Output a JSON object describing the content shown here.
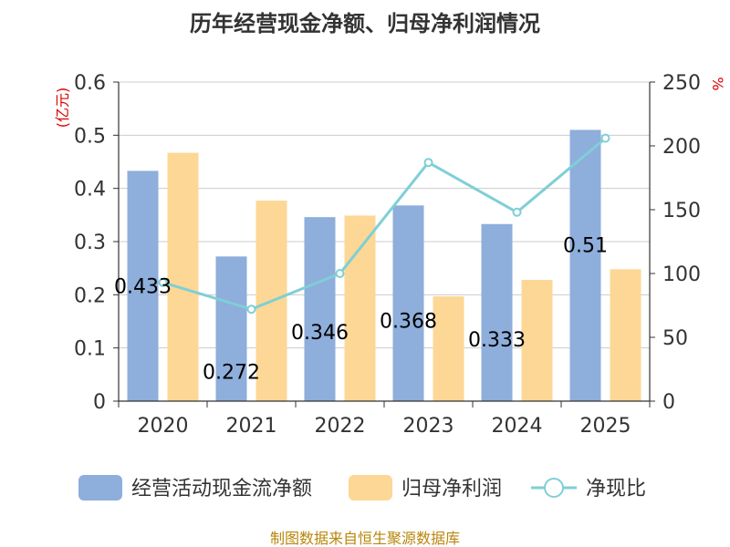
{
  "chart_data": {
    "type": "bar",
    "title": "历年经营现金净额、归母净利润情况",
    "categories": [
      "2020",
      "2021",
      "2022",
      "2023",
      "2024",
      "2025"
    ],
    "series": [
      {
        "name": "经营活动现金流净额",
        "kind": "bar",
        "axis": "left",
        "color": "#8eaedb",
        "values": [
          0.433,
          0.272,
          0.346,
          0.368,
          0.333,
          0.51
        ],
        "labels": [
          "0.433",
          "0.272",
          "0.346",
          "0.368",
          "0.333",
          "0.51"
        ]
      },
      {
        "name": "归母净利润",
        "kind": "bar",
        "axis": "left",
        "color": "#fdd795",
        "values": [
          0.467,
          0.377,
          0.349,
          0.197,
          0.228,
          0.248
        ]
      },
      {
        "name": "净现比",
        "kind": "line",
        "axis": "right",
        "color": "#7fcfd6",
        "values": [
          93,
          72,
          100,
          187,
          148,
          206
        ]
      }
    ],
    "y_left": {
      "unit": "(亿元)",
      "ylim": [
        0,
        0.6
      ],
      "ticks": [
        "0",
        "0.1",
        "0.2",
        "0.3",
        "0.4",
        "0.5",
        "0.6"
      ]
    },
    "y_right": {
      "unit": "%",
      "ylim": [
        0,
        250
      ],
      "ticks": [
        "0",
        "50",
        "100",
        "150",
        "200",
        "250"
      ]
    },
    "grid": true,
    "legend": "bottom"
  },
  "source": "制图数据来自恒生聚源数据库"
}
